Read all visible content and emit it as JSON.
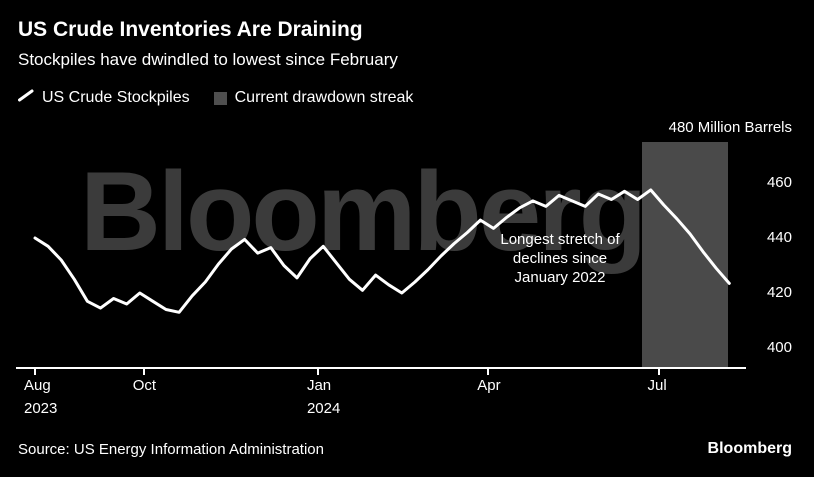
{
  "header": {
    "title": "US Crude Inventories Are Draining",
    "subtitle": "Stockpiles have dwindled to lowest since February"
  },
  "legend": [
    {
      "label": "US Crude Stockpiles",
      "marker": "line",
      "color": "#ffffff"
    },
    {
      "label": "Current drawdown streak",
      "marker": "square",
      "color": "#4f4f4f"
    }
  ],
  "watermark": "Bloomberg",
  "footer": {
    "source": "Source: US Energy Information Administration",
    "logo": "Bloomberg"
  },
  "chart_data": {
    "type": "line",
    "title": "US Crude Inventories Are Draining",
    "ylabel": "Million Barrels",
    "background": "#000000",
    "line_color": "#ffffff",
    "band_color": "#4a4a4a",
    "legend_position": "top-left",
    "grid": false,
    "y_axis_side": "right",
    "ylim": [
      392,
      483
    ],
    "frequency": "weekly",
    "x_range": "Aug 2023 - Aug 2024",
    "y_ticks": [
      {
        "value": 480,
        "label": "480 Million Barrels"
      },
      {
        "value": 460,
        "label": "460"
      },
      {
        "value": 440,
        "label": "440"
      },
      {
        "value": 420,
        "label": "420"
      },
      {
        "value": 400,
        "label": "400"
      }
    ],
    "x_ticks": [
      {
        "index": 0,
        "label": "Aug",
        "sublabel": "2023"
      },
      {
        "index": 8.3,
        "label": "Oct",
        "sublabel": ""
      },
      {
        "index": 21.6,
        "label": "Jan",
        "sublabel": "2024"
      },
      {
        "index": 34.6,
        "label": "Apr",
        "sublabel": ""
      },
      {
        "index": 47.6,
        "label": "Jul",
        "sublabel": ""
      }
    ],
    "series": [
      {
        "name": "US Crude Stockpiles",
        "values": [
          440,
          437,
          432,
          425,
          417,
          414.5,
          418,
          416,
          420,
          417,
          414,
          413,
          419,
          424,
          430.5,
          436,
          439.5,
          434.5,
          436.5,
          430,
          425.5,
          432.5,
          437,
          431,
          425,
          421,
          426.5,
          423,
          420,
          424,
          428.5,
          433.5,
          438,
          442,
          446.5,
          443.5,
          447.5,
          451,
          453.5,
          451.5,
          455.5,
          453.5,
          451.5,
          456,
          454,
          457,
          454,
          457.5,
          452,
          447,
          441.5,
          435,
          429,
          423.5
        ]
      }
    ],
    "band": {
      "name": "Current drawdown streak",
      "start_index": 46.3,
      "end_index": 52.9
    },
    "annotation": {
      "lines": [
        "Longest stretch of",
        "declines since",
        "January 2022"
      ]
    }
  }
}
